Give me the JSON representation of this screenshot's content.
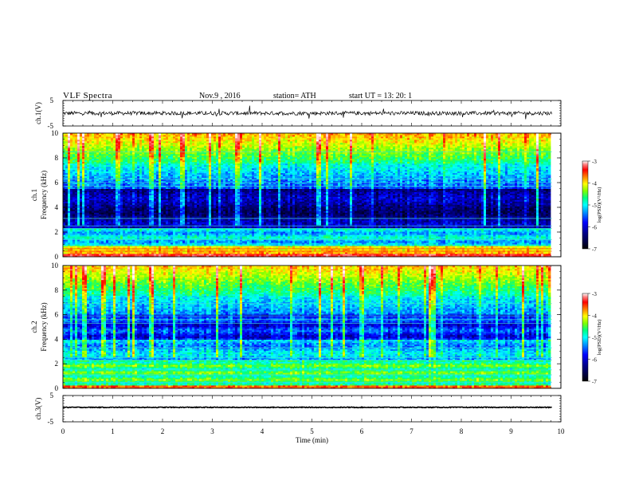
{
  "header": {
    "title": "VLF  Spectra",
    "date": "Nov.9  , 2016",
    "station": "station= ATH",
    "start_ut": "start  UT  =    13: 20: 1"
  },
  "colors": {
    "trace": "#000000",
    "colormap": [
      "#000000",
      "#000033",
      "#00008b",
      "#0000ff",
      "#0080ff",
      "#00ffff",
      "#00ff80",
      "#80ff00",
      "#ffff00",
      "#ff8000",
      "#ff0000",
      "#ff8080",
      "#ffffff"
    ]
  },
  "chart_data": [
    {
      "type": "line",
      "ylabel": "ch.1(V)",
      "ylim": [
        -5,
        5
      ],
      "ytick_labels": [
        "-5",
        "5"
      ],
      "xlim": [
        0,
        10
      ],
      "series": [
        {
          "approx_level": 0.0,
          "noise_amplitude": 1.5
        }
      ]
    },
    {
      "type": "heatmap",
      "ylabel_lines": [
        "ch.1",
        "Frequency  (kHz)"
      ],
      "ylim": [
        0,
        10
      ],
      "yticks": [
        0,
        2,
        4,
        6,
        8,
        10
      ],
      "xlim": [
        0,
        10
      ],
      "colorbar": {
        "label": "log(PSD)(V²/Hz)",
        "range": [
          -7,
          -3
        ],
        "ticks": [
          -7,
          -6,
          -5,
          -4,
          -3
        ]
      }
    },
    {
      "type": "heatmap",
      "ylabel_lines": [
        "ch.2",
        "Frequency  (kHz)"
      ],
      "ylim": [
        0,
        10
      ],
      "yticks": [
        0,
        2,
        4,
        6,
        8,
        10
      ],
      "xlim": [
        0,
        10
      ],
      "colorbar": {
        "label": "log(PSD)(V²/Hz)",
        "range": [
          -7,
          -3
        ],
        "ticks": [
          -7,
          -6,
          -5,
          -4,
          -3
        ]
      }
    },
    {
      "type": "line",
      "ylabel": "ch.3(V)",
      "ylim": [
        -5,
        5
      ],
      "ytick_labels": [
        "-5",
        "5"
      ],
      "xlim": [
        0,
        10
      ],
      "xlabel": "Time  (min)",
      "xticks": [
        0,
        1,
        2,
        3,
        4,
        5,
        6,
        7,
        8,
        9,
        10
      ],
      "series": [
        {
          "approx_level": 0.5,
          "noise_amplitude": 0.3
        }
      ]
    }
  ]
}
